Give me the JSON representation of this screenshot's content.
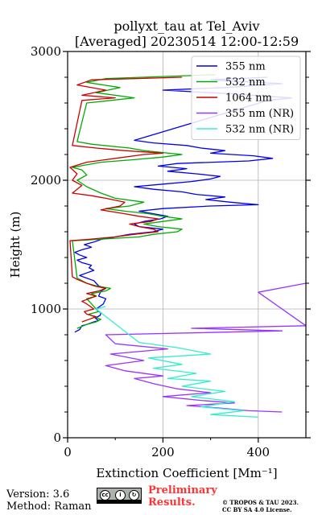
{
  "chart_data": {
    "type": "line",
    "title": "pollyxt_tau at Tel_Aviv",
    "subtitle": "[Averaged] 20230514 12:00-12:59",
    "xlabel": "Extinction Coefficient [Mm⁻¹]",
    "ylabel": "Height (m)",
    "xlim": [
      0,
      500
    ],
    "ylim": [
      0,
      3000
    ],
    "xticks": [
      0,
      200,
      400
    ],
    "yticks": [
      0,
      1000,
      2000,
      3000
    ],
    "grid": true,
    "legend_position": "top-right",
    "series": [
      {
        "name": "355 nm",
        "color": "#0000ee",
        "points": [
          [
            15,
            820
          ],
          [
            25,
            840
          ],
          [
            30,
            870
          ],
          [
            40,
            880
          ],
          [
            55,
            900
          ],
          [
            65,
            910
          ],
          [
            58,
            930
          ],
          [
            68,
            950
          ],
          [
            70,
            970
          ],
          [
            62,
            990
          ],
          [
            60,
            1000
          ],
          [
            75,
            1040
          ],
          [
            80,
            1080
          ],
          [
            65,
            1100
          ],
          [
            70,
            1140
          ],
          [
            80,
            1160
          ],
          [
            65,
            1180
          ],
          [
            60,
            1200
          ],
          [
            55,
            1220
          ],
          [
            40,
            1240
          ],
          [
            25,
            1260
          ],
          [
            40,
            1280
          ],
          [
            55,
            1300
          ],
          [
            45,
            1320
          ],
          [
            50,
            1340
          ],
          [
            30,
            1360
          ],
          [
            20,
            1380
          ],
          [
            40,
            1400
          ],
          [
            25,
            1420
          ],
          [
            15,
            1440
          ],
          [
            30,
            1460
          ],
          [
            50,
            1480
          ],
          [
            35,
            1500
          ],
          [
            55,
            1520
          ],
          [
            70,
            1540
          ],
          [
            100,
            1560
          ],
          [
            130,
            1580
          ],
          [
            180,
            1600
          ],
          [
            200,
            1620
          ],
          [
            150,
            1640
          ],
          [
            140,
            1660
          ],
          [
            160,
            1680
          ],
          [
            195,
            1700
          ],
          [
            210,
            1720
          ],
          [
            180,
            1740
          ],
          [
            150,
            1760
          ],
          [
            200,
            1780
          ],
          [
            300,
            1800
          ],
          [
            400,
            1810
          ],
          [
            340,
            1830
          ],
          [
            290,
            1850
          ],
          [
            330,
            1870
          ],
          [
            270,
            1890
          ],
          [
            240,
            1910
          ],
          [
            180,
            1930
          ],
          [
            140,
            1950
          ],
          [
            200,
            1970
          ],
          [
            260,
            1990
          ],
          [
            300,
            2010
          ],
          [
            320,
            2030
          ],
          [
            270,
            2050
          ],
          [
            210,
            2070
          ],
          [
            250,
            2090
          ],
          [
            190,
            2110
          ],
          [
            230,
            2130
          ],
          [
            380,
            2150
          ],
          [
            430,
            2170
          ],
          [
            390,
            2190
          ],
          [
            300,
            2210
          ],
          [
            330,
            2230
          ],
          [
            280,
            2250
          ],
          [
            250,
            2270
          ],
          [
            180,
            2290
          ],
          [
            140,
            2310
          ],
          [
            420,
            2620
          ],
          [
            470,
            2640
          ],
          [
            350,
            2670
          ],
          [
            200,
            2700
          ],
          [
            330,
            2720
          ],
          [
            450,
            2750
          ],
          [
            300,
            2780
          ],
          [
            420,
            2800
          ]
        ]
      },
      {
        "name": "532 nm",
        "color": "#00aa00",
        "points": [
          [
            20,
            850
          ],
          [
            40,
            880
          ],
          [
            60,
            900
          ],
          [
            70,
            920
          ],
          [
            55,
            940
          ],
          [
            45,
            960
          ],
          [
            65,
            980
          ],
          [
            60,
            1000
          ],
          [
            50,
            1040
          ],
          [
            40,
            1080
          ],
          [
            60,
            1100
          ],
          [
            50,
            1120
          ],
          [
            80,
            1140
          ],
          [
            90,
            1160
          ],
          [
            60,
            1180
          ],
          [
            40,
            1200
          ],
          [
            30,
            1220
          ],
          [
            20,
            1240
          ],
          [
            10,
            1530
          ],
          [
            60,
            1540
          ],
          [
            150,
            1560
          ],
          [
            180,
            1580
          ],
          [
            230,
            1600
          ],
          [
            240,
            1620
          ],
          [
            190,
            1640
          ],
          [
            160,
            1660
          ],
          [
            200,
            1680
          ],
          [
            240,
            1700
          ],
          [
            200,
            1720
          ],
          [
            170,
            1740
          ],
          [
            120,
            1760
          ],
          [
            80,
            1780
          ],
          [
            130,
            1800
          ],
          [
            160,
            1830
          ],
          [
            100,
            1860
          ],
          [
            70,
            1900
          ],
          [
            40,
            1950
          ],
          [
            20,
            2000
          ],
          [
            40,
            2040
          ],
          [
            30,
            2080
          ],
          [
            10,
            2100
          ],
          [
            70,
            2140
          ],
          [
            140,
            2160
          ],
          [
            200,
            2180
          ],
          [
            240,
            2200
          ],
          [
            160,
            2230
          ],
          [
            130,
            2250
          ],
          [
            50,
            2280
          ],
          [
            20,
            2300
          ],
          [
            40,
            2600
          ],
          [
            140,
            2640
          ],
          [
            60,
            2680
          ],
          [
            110,
            2720
          ],
          [
            40,
            2760
          ],
          [
            80,
            2790
          ],
          [
            310,
            2820
          ]
        ]
      },
      {
        "name": "1064 nm",
        "color": "#cc0000",
        "points": [
          [
            30,
            900
          ],
          [
            45,
            920
          ],
          [
            60,
            940
          ],
          [
            40,
            960
          ],
          [
            35,
            980
          ],
          [
            55,
            1000
          ],
          [
            40,
            1040
          ],
          [
            30,
            1060
          ],
          [
            45,
            1080
          ],
          [
            60,
            1100
          ],
          [
            40,
            1120
          ],
          [
            65,
            1140
          ],
          [
            80,
            1160
          ],
          [
            55,
            1180
          ],
          [
            40,
            1200
          ],
          [
            20,
            1230
          ],
          [
            10,
            1250
          ],
          [
            5,
            1530
          ],
          [
            40,
            1540
          ],
          [
            100,
            1560
          ],
          [
            140,
            1580
          ],
          [
            190,
            1600
          ],
          [
            180,
            1620
          ],
          [
            150,
            1640
          ],
          [
            130,
            1660
          ],
          [
            175,
            1680
          ],
          [
            190,
            1700
          ],
          [
            150,
            1720
          ],
          [
            120,
            1740
          ],
          [
            70,
            1770
          ],
          [
            110,
            1800
          ],
          [
            120,
            1830
          ],
          [
            80,
            1860
          ],
          [
            50,
            1880
          ],
          [
            10,
            1900
          ],
          [
            30,
            1960
          ],
          [
            10,
            2000
          ],
          [
            20,
            2050
          ],
          [
            5,
            2100
          ],
          [
            40,
            2140
          ],
          [
            100,
            2170
          ],
          [
            160,
            2200
          ],
          [
            200,
            2210
          ],
          [
            120,
            2230
          ],
          [
            60,
            2250
          ],
          [
            10,
            2270
          ],
          [
            30,
            2620
          ],
          [
            100,
            2640
          ],
          [
            30,
            2660
          ],
          [
            80,
            2700
          ],
          [
            20,
            2740
          ],
          [
            50,
            2780
          ],
          [
            240,
            2800
          ]
        ]
      },
      {
        "name": "355 nm (NR)",
        "color": "#9933ff",
        "points": [
          [
            450,
            200
          ],
          [
            380,
            210
          ],
          [
            320,
            230
          ],
          [
            250,
            250
          ],
          [
            350,
            270
          ],
          [
            280,
            290
          ],
          [
            200,
            320
          ],
          [
            300,
            350
          ],
          [
            230,
            380
          ],
          [
            180,
            420
          ],
          [
            140,
            460
          ],
          [
            200,
            480
          ],
          [
            120,
            520
          ],
          [
            80,
            560
          ],
          [
            160,
            600
          ],
          [
            90,
            650
          ],
          [
            210,
            690
          ],
          [
            100,
            730
          ],
          [
            80,
            800
          ],
          [
            450,
            830
          ],
          [
            260,
            850
          ],
          [
            500,
            870
          ],
          [
            400,
            1130
          ],
          [
            500,
            1200
          ]
        ]
      },
      {
        "name": "532 nm (NR)",
        "color": "#33eecc",
        "points": [
          [
            400,
            160
          ],
          [
            300,
            180
          ],
          [
            370,
            210
          ],
          [
            280,
            240
          ],
          [
            350,
            280
          ],
          [
            260,
            320
          ],
          [
            330,
            360
          ],
          [
            240,
            400
          ],
          [
            300,
            440
          ],
          [
            210,
            460
          ],
          [
            270,
            500
          ],
          [
            180,
            540
          ],
          [
            240,
            570
          ],
          [
            170,
            620
          ],
          [
            300,
            650
          ],
          [
            230,
            700
          ],
          [
            150,
            740
          ],
          [
            60,
            1000
          ],
          [
            80,
            1020
          ]
        ]
      }
    ]
  },
  "footer": {
    "version": "Version: 3.6",
    "method": "Method: Raman",
    "prelim_line1": "Preliminary",
    "prelim_line2": "Results.",
    "copyright_line1": "© TROPOS & TAU 2023.",
    "copyright_line2": "CC BY SA 4.0 License.",
    "license_badge": "CC BY SA"
  }
}
